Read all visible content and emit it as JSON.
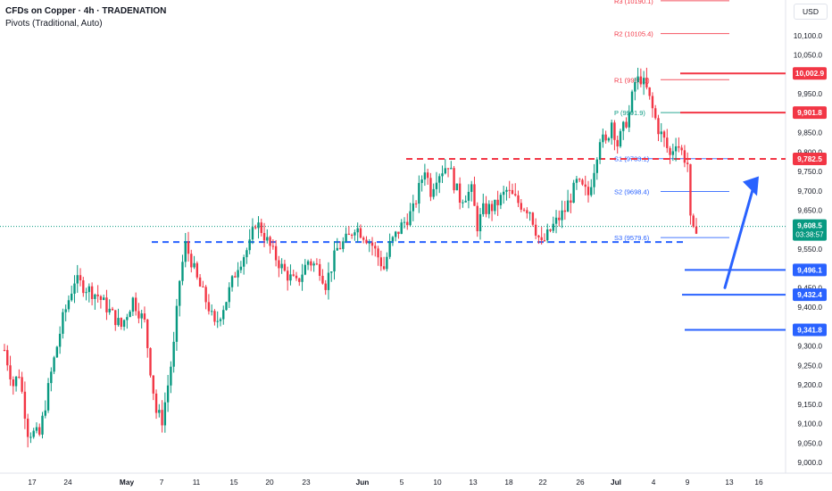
{
  "header": {
    "title": "CFDs on Copper · 4h · TRADENATION",
    "indicator": "Pivots (Traditional, Auto)",
    "currency_button": "USD"
  },
  "colors": {
    "up": "#089981",
    "down": "#f23645",
    "blue": "#2962ff",
    "red_level": "#f23645",
    "current_price": "#089981"
  },
  "chart_data": {
    "type": "candlestick",
    "ylim": [
      8980,
      10225
    ],
    "price_axis_ticks": [
      "10,100.0",
      "10,050.0",
      "10,000.0",
      "9,950.0",
      "9,900.0",
      "9,850.0",
      "9,800.0",
      "9,750.0",
      "9,700.0",
      "9,650.0",
      "9,600.0",
      "9,550.0",
      "9,500.0",
      "9,450.0",
      "9,400.0",
      "9,350.0",
      "9,300.0",
      "9,250.0",
      "9,200.0",
      "9,150.0",
      "9,100.0",
      "9,050.0",
      "9,000.0"
    ],
    "time_axis_ticks": [
      "17",
      "24",
      "May",
      "7",
      "11",
      "15",
      "20",
      "23",
      "Jun",
      "5",
      "10",
      "13",
      "18",
      "22",
      "26",
      "Jul",
      "4",
      "9",
      "13",
      "16"
    ],
    "pivots": [
      {
        "label": "R3",
        "value": "10190.1",
        "price": 10190.1,
        "color": "#f23645"
      },
      {
        "label": "R2",
        "value": "10105.4",
        "price": 10105.4,
        "color": "#f23645"
      },
      {
        "label": "R1",
        "value": "9986.6",
        "price": 9986.6,
        "color": "#f23645"
      },
      {
        "label": "P",
        "value": "9901.9",
        "price": 9901.9,
        "color": "#089981"
      },
      {
        "label": "S1",
        "value": "9783.1",
        "price": 9783.1,
        "color": "#2962ff"
      },
      {
        "label": "S2",
        "value": "9698.4",
        "price": 9698.4,
        "color": "#2962ff"
      },
      {
        "label": "S3",
        "value": "9579.6",
        "price": 9579.6,
        "color": "#2962ff"
      }
    ],
    "levels": [
      {
        "label": "10,002.9",
        "price": 10002.9,
        "color": "#f23645",
        "style": "solid"
      },
      {
        "label": "9,901.8",
        "price": 9901.8,
        "color": "#f23645",
        "style": "solid"
      },
      {
        "label": "9,782.5",
        "price": 9782.5,
        "color": "#f23645",
        "style": "dashed"
      },
      {
        "label": "9,496.1",
        "price": 9496.1,
        "color": "#2962ff",
        "style": "solid"
      },
      {
        "label": "9,432.4",
        "price": 9432.4,
        "color": "#2962ff",
        "style": "solid"
      },
      {
        "label": "9,341.8",
        "price": 9341.8,
        "color": "#2962ff",
        "style": "solid"
      },
      {
        "price": 9568,
        "color": "#2962ff",
        "style": "dashed"
      }
    ],
    "current_price": {
      "price": 9608.5,
      "label": "9,608.5",
      "countdown": "03:38:57"
    },
    "forecast_arrow": {
      "from_price": 9570,
      "to_price": 9710,
      "direction": "up"
    },
    "anchors": [
      [
        0,
        9290
      ],
      [
        3,
        9200
      ],
      [
        5,
        9230
      ],
      [
        8,
        9080
      ],
      [
        12,
        9070
      ],
      [
        16,
        9230
      ],
      [
        20,
        9370
      ],
      [
        24,
        9470
      ],
      [
        28,
        9450
      ],
      [
        32,
        9430
      ],
      [
        36,
        9390
      ],
      [
        40,
        9350
      ],
      [
        44,
        9420
      ],
      [
        48,
        9360
      ],
      [
        50,
        9240
      ],
      [
        52,
        9130
      ],
      [
        54,
        9110
      ],
      [
        56,
        9200
      ],
      [
        58,
        9300
      ],
      [
        60,
        9470
      ],
      [
        62,
        9560
      ],
      [
        64,
        9520
      ],
      [
        66,
        9470
      ],
      [
        70,
        9400
      ],
      [
        72,
        9350
      ],
      [
        76,
        9420
      ],
      [
        80,
        9510
      ],
      [
        84,
        9560
      ],
      [
        86,
        9620
      ],
      [
        88,
        9600
      ],
      [
        92,
        9540
      ],
      [
        96,
        9490
      ],
      [
        100,
        9460
      ],
      [
        104,
        9520
      ],
      [
        108,
        9500
      ],
      [
        110,
        9460
      ],
      [
        114,
        9550
      ],
      [
        118,
        9580
      ],
      [
        120,
        9610
      ],
      [
        124,
        9580
      ],
      [
        126,
        9560
      ],
      [
        128,
        9530
      ],
      [
        130,
        9500
      ],
      [
        132,
        9560
      ],
      [
        136,
        9610
      ],
      [
        140,
        9650
      ],
      [
        144,
        9760
      ],
      [
        146,
        9700
      ],
      [
        148,
        9740
      ],
      [
        152,
        9770
      ],
      [
        154,
        9720
      ],
      [
        156,
        9680
      ],
      [
        160,
        9700
      ],
      [
        162,
        9610
      ],
      [
        164,
        9650
      ],
      [
        168,
        9660
      ],
      [
        172,
        9700
      ],
      [
        176,
        9670
      ],
      [
        180,
        9650
      ],
      [
        182,
        9600
      ],
      [
        184,
        9560
      ],
      [
        188,
        9610
      ],
      [
        192,
        9650
      ],
      [
        196,
        9720
      ],
      [
        200,
        9690
      ],
      [
        202,
        9760
      ],
      [
        204,
        9840
      ],
      [
        206,
        9820
      ],
      [
        208,
        9880
      ],
      [
        210,
        9820
      ],
      [
        212,
        9860
      ],
      [
        214,
        9900
      ],
      [
        216,
        9980
      ],
      [
        218,
        9990
      ],
      [
        220,
        9960
      ],
      [
        222,
        9910
      ],
      [
        224,
        9860
      ],
      [
        226,
        9830
      ],
      [
        228,
        9790
      ],
      [
        230,
        9830
      ],
      [
        232,
        9800
      ],
      [
        234,
        9770
      ],
      [
        235,
        9620
      ],
      [
        236,
        9590
      ],
      [
        237,
        9608
      ]
    ]
  }
}
